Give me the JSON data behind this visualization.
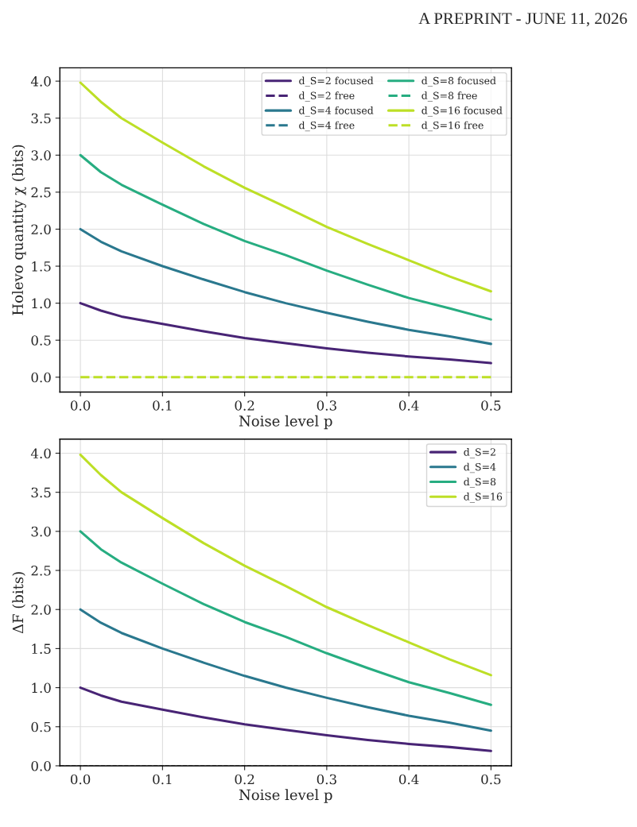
{
  "chart_data": [
    {
      "type": "line",
      "annotations": [
        "A PREPRINT - JUNE 11, 2026"
      ],
      "xlabel": "Noise level p",
      "ylabel": "Holevo quantity χ (bits)",
      "x": [
        0,
        0.025,
        0.05,
        0.1,
        0.15,
        0.2,
        0.25,
        0.3,
        0.35,
        0.4,
        0.45,
        0.5
      ],
      "xlim": [
        -0.025,
        0.525
      ],
      "ylim": [
        -0.2,
        4.18
      ],
      "xticks": [
        {
          "value": 0,
          "label": "0.0"
        },
        {
          "value": 0.1,
          "label": "0.1"
        },
        {
          "value": 0.2,
          "label": "0.2"
        },
        {
          "value": 0.3,
          "label": "0.3"
        },
        {
          "value": 0.4,
          "label": "0.4"
        },
        {
          "value": 0.5,
          "label": "0.5"
        }
      ],
      "yticks": [
        {
          "value": 0,
          "label": "0.0"
        },
        {
          "value": 0.5,
          "label": "0.5"
        },
        {
          "value": 1,
          "label": "1.0"
        },
        {
          "value": 1.5,
          "label": "1.5"
        },
        {
          "value": 2,
          "label": "2.0"
        },
        {
          "value": 2.5,
          "label": "2.5"
        },
        {
          "value": 3,
          "label": "3.0"
        },
        {
          "value": 3.5,
          "label": "3.5"
        },
        {
          "value": 4,
          "label": "4.0"
        }
      ],
      "grid": true,
      "legend": "top right",
      "series": [
        {
          "name": "d_S=2 focused",
          "color": "#482475",
          "line_style": "solid",
          "values": [
            1.0,
            0.9,
            0.82,
            0.72,
            0.62,
            0.53,
            0.46,
            0.39,
            0.33,
            0.28,
            0.24,
            0.19
          ]
        },
        {
          "name": "d_S=2 free",
          "color": "#482475",
          "line_style": "dashed",
          "values": [
            null,
            null,
            null,
            null,
            null,
            null,
            null,
            null,
            null,
            null,
            null,
            null
          ]
        },
        {
          "name": "d_S=4 focused",
          "color": "#2a788e",
          "line_style": "solid",
          "values": [
            2.0,
            1.83,
            1.7,
            1.5,
            1.32,
            1.15,
            1.0,
            0.87,
            0.75,
            0.64,
            0.55,
            0.45
          ]
        },
        {
          "name": "d_S=4 free",
          "color": "#2a788e",
          "line_style": "dashed",
          "values": [
            null,
            null,
            null,
            null,
            null,
            null,
            null,
            null,
            null,
            null,
            null,
            null
          ]
        },
        {
          "name": "d_S=8 focused",
          "color": "#27ad81",
          "line_style": "solid",
          "values": [
            3.0,
            2.77,
            2.6,
            2.33,
            2.07,
            1.84,
            1.65,
            1.44,
            1.25,
            1.07,
            0.93,
            0.78
          ]
        },
        {
          "name": "d_S=8 free",
          "color": "#27ad81",
          "line_style": "dashed",
          "values": [
            null,
            null,
            null,
            null,
            null,
            null,
            null,
            null,
            null,
            null,
            null,
            null
          ]
        },
        {
          "name": "d_S=16 focused",
          "color": "#bddf26",
          "line_style": "solid",
          "values": [
            3.98,
            3.72,
            3.5,
            3.17,
            2.85,
            2.56,
            2.3,
            2.03,
            1.8,
            1.58,
            1.36,
            1.16
          ]
        },
        {
          "name": "d_S=16 free",
          "color": "#bddf26",
          "line_style": "dashed",
          "values": [
            0,
            0,
            0,
            0,
            0,
            0,
            0,
            0,
            0,
            0,
            0,
            0
          ]
        }
      ]
    },
    {
      "type": "line",
      "xlabel": "Noise level p",
      "ylabel": "ΔF (bits)",
      "x": [
        0,
        0.025,
        0.05,
        0.1,
        0.15,
        0.2,
        0.25,
        0.3,
        0.35,
        0.4,
        0.45,
        0.5
      ],
      "xlim": [
        -0.025,
        0.525
      ],
      "ylim": [
        0,
        4.18
      ],
      "xticks": [
        {
          "value": 0,
          "label": "0.0"
        },
        {
          "value": 0.1,
          "label": "0.1"
        },
        {
          "value": 0.2,
          "label": "0.2"
        },
        {
          "value": 0.3,
          "label": "0.3"
        },
        {
          "value": 0.4,
          "label": "0.4"
        },
        {
          "value": 0.5,
          "label": "0.5"
        }
      ],
      "yticks": [
        {
          "value": 0,
          "label": "0.0"
        },
        {
          "value": 0.5,
          "label": "0.5"
        },
        {
          "value": 1,
          "label": "1.0"
        },
        {
          "value": 1.5,
          "label": "1.5"
        },
        {
          "value": 2,
          "label": "2.0"
        },
        {
          "value": 2.5,
          "label": "2.5"
        },
        {
          "value": 3,
          "label": "3.0"
        },
        {
          "value": 3.5,
          "label": "3.5"
        },
        {
          "value": 4,
          "label": "4.0"
        }
      ],
      "grid": true,
      "legend": "top right",
      "ref_lines": [
        {
          "axis": "y",
          "value": 0,
          "color": "#555555",
          "line_style": "dashed"
        }
      ],
      "series": [
        {
          "name": "d_S=2",
          "color": "#482475",
          "line_style": "solid",
          "values": [
            1.0,
            0.9,
            0.82,
            0.72,
            0.62,
            0.53,
            0.46,
            0.39,
            0.33,
            0.28,
            0.24,
            0.19
          ]
        },
        {
          "name": "d_S=4",
          "color": "#2a788e",
          "line_style": "solid",
          "values": [
            2.0,
            1.83,
            1.7,
            1.5,
            1.32,
            1.15,
            1.0,
            0.87,
            0.75,
            0.64,
            0.55,
            0.45
          ]
        },
        {
          "name": "d_S=8",
          "color": "#27ad81",
          "line_style": "solid",
          "values": [
            3.0,
            2.77,
            2.6,
            2.33,
            2.07,
            1.84,
            1.65,
            1.44,
            1.25,
            1.07,
            0.93,
            0.78
          ]
        },
        {
          "name": "d_S=16",
          "color": "#bddf26",
          "line_style": "solid",
          "values": [
            3.98,
            3.72,
            3.5,
            3.17,
            2.85,
            2.56,
            2.3,
            2.03,
            1.8,
            1.58,
            1.36,
            1.16
          ]
        }
      ]
    }
  ]
}
